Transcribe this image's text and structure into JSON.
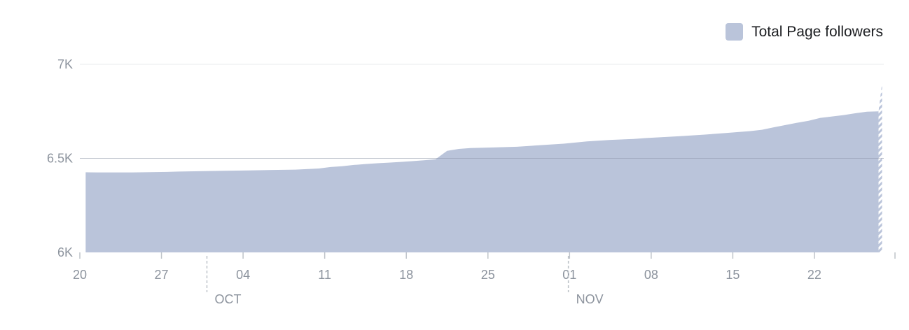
{
  "chart_data": {
    "type": "area",
    "title": "",
    "xlabel": "",
    "ylabel": "",
    "x_start": "2020-09-20",
    "x_tick_labels": [
      "20",
      "27",
      "04",
      "11",
      "18",
      "25",
      "01",
      "08",
      "15",
      "22"
    ],
    "month_labels": [
      "OCT",
      "NOV"
    ],
    "y_ticks": [
      6000,
      6500,
      7000
    ],
    "y_tick_labels": [
      "6K",
      "6.5K",
      "7K"
    ],
    "ylim": [
      6000,
      7000
    ],
    "grid": true,
    "legend_position": "top-right",
    "series": [
      {
        "name": "Total Page followers",
        "color": "#bac4da",
        "x": [
          "2020-09-20",
          "2020-09-21",
          "2020-09-24",
          "2020-09-27",
          "2020-09-28",
          "2020-10-01",
          "2020-10-04",
          "2020-10-06",
          "2020-10-08",
          "2020-10-10",
          "2020-10-11",
          "2020-10-12",
          "2020-10-13",
          "2020-10-14",
          "2020-10-15",
          "2020-10-16",
          "2020-10-17",
          "2020-10-18",
          "2020-10-19",
          "2020-10-20",
          "2020-10-21",
          "2020-10-22",
          "2020-10-23",
          "2020-10-25",
          "2020-10-27",
          "2020-10-29",
          "2020-10-31",
          "2020-11-02",
          "2020-11-04",
          "2020-11-06",
          "2020-11-07",
          "2020-11-10",
          "2020-11-12",
          "2020-11-14",
          "2020-11-16",
          "2020-11-17",
          "2020-11-18",
          "2020-11-19",
          "2020-11-20",
          "2020-11-21",
          "2020-11-22",
          "2020-11-24",
          "2020-11-25",
          "2020-11-26",
          "2020-11-27"
        ],
        "values": [
          6426,
          6425,
          6425,
          6428,
          6430,
          6433,
          6436,
          6438,
          6440,
          6446,
          6454,
          6458,
          6465,
          6470,
          6474,
          6477,
          6481,
          6485,
          6490,
          6495,
          6540,
          6550,
          6555,
          6558,
          6562,
          6570,
          6578,
          6590,
          6598,
          6603,
          6608,
          6618,
          6626,
          6635,
          6645,
          6652,
          6665,
          6677,
          6689,
          6700,
          6715,
          6730,
          6740,
          6748,
          6750
        ],
        "projected": {
          "x": [
            "2020-11-27",
            "2020-11-28"
          ],
          "values": [
            6750,
            6900
          ]
        }
      }
    ]
  }
}
